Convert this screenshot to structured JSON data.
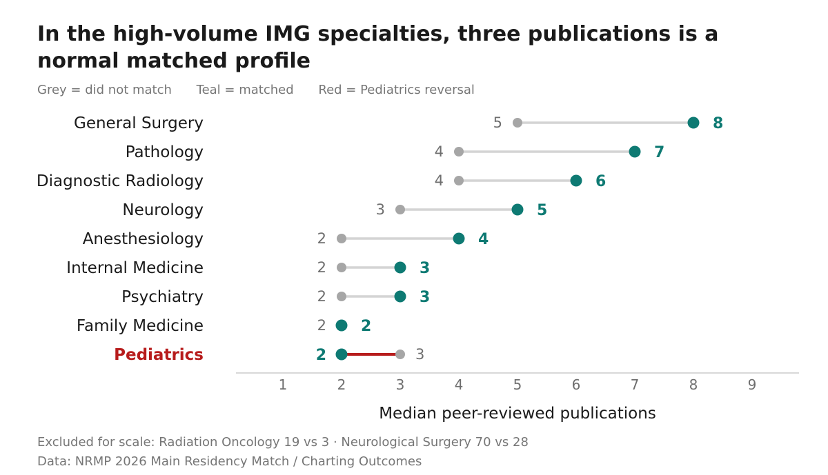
{
  "title": "In the high-volume IMG specialties, three publications is a normal matched profile",
  "legend": {
    "grey": "Grey = did not match",
    "teal": "Teal = matched",
    "red": "Red = Pediatrics reversal"
  },
  "footnote": "Excluded for scale: Radiation Oncology 19 vs 3 · Neurological Surgery 70 vs 28",
  "source": "Data: NRMP 2026 Main Residency Match / Charting Outcomes",
  "colors": {
    "grey": "#a6a6a6",
    "teal": "#0e7a73",
    "red": "#b71c1c",
    "connector": "#d4d4d4",
    "axis": "#cccccc",
    "label": "#1a1a1a"
  },
  "chart_data": {
    "type": "dumbbell",
    "xlabel": "Median peer-reviewed publications",
    "xlim": [
      0.2,
      9.8
    ],
    "xticks": [
      1,
      2,
      3,
      4,
      5,
      6,
      7,
      8,
      9
    ],
    "series": [
      {
        "name": "did not match",
        "color": "grey"
      },
      {
        "name": "matched",
        "color": "teal"
      }
    ],
    "rows": [
      {
        "specialty": "General Surgery",
        "unmatched": 5,
        "matched": 8
      },
      {
        "specialty": "Pathology",
        "unmatched": 4,
        "matched": 7
      },
      {
        "specialty": "Diagnostic Radiology",
        "unmatched": 4,
        "matched": 6
      },
      {
        "specialty": "Neurology",
        "unmatched": 3,
        "matched": 5
      },
      {
        "specialty": "Anesthesiology",
        "unmatched": 2,
        "matched": 4
      },
      {
        "specialty": "Internal Medicine",
        "unmatched": 2,
        "matched": 3
      },
      {
        "specialty": "Psychiatry",
        "unmatched": 2,
        "matched": 3
      },
      {
        "specialty": "Family Medicine",
        "unmatched": 2,
        "matched": 2
      },
      {
        "specialty": "Pediatrics",
        "unmatched": 3,
        "matched": 2,
        "highlight": "red"
      }
    ]
  }
}
